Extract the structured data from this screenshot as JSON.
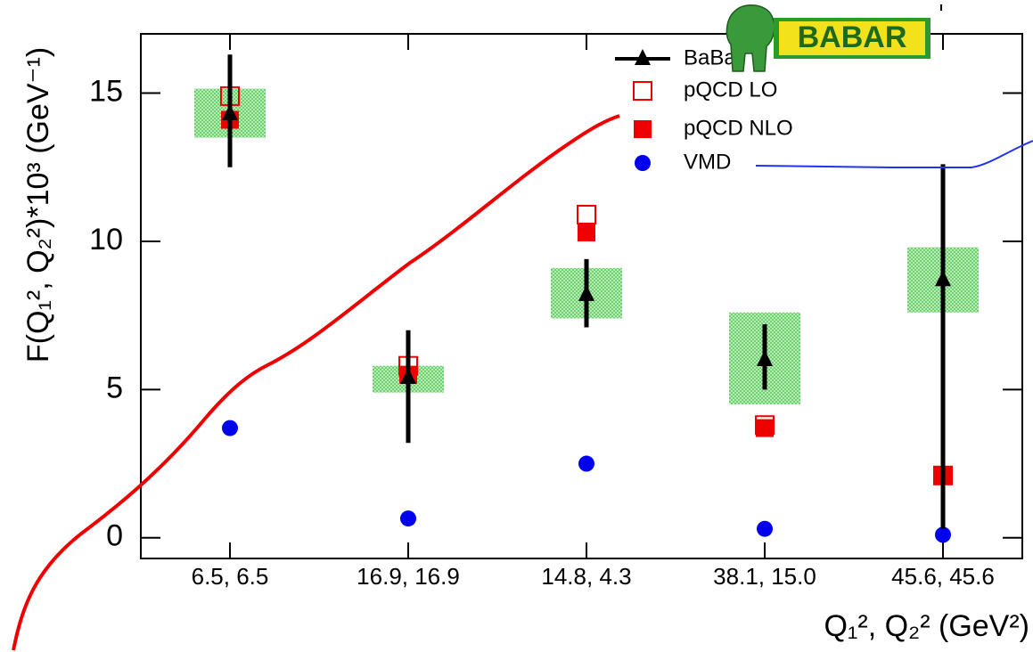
{
  "chart_data": {
    "type": "errorbar",
    "y_label": "F(Q₁², Q₂²)*10³ (GeV⁻¹)",
    "x_label": "Q₁², Q₂² (GeV²)",
    "logo": "BABAR",
    "categories": [
      "6.5, 6.5",
      "16.9, 16.9",
      "14.8, 4.3",
      "38.1, 15.0",
      "45.6, 45.6"
    ],
    "ylim": [
      -0.7,
      17
    ],
    "yticks": [
      0,
      5,
      10,
      15
    ],
    "series": [
      {
        "name": "BaBar",
        "marker": "triangle",
        "color": "#000000",
        "values": [
          14.3,
          5.4,
          8.2,
          6.0,
          8.7
        ],
        "err_minus": [
          1.8,
          2.2,
          1.1,
          1.0,
          8.4
        ],
        "err_plus": [
          2.0,
          1.6,
          1.2,
          1.2,
          3.9
        ],
        "syst_minus": [
          0.8,
          0.5,
          0.8,
          1.5,
          1.1
        ],
        "syst_plus": [
          0.85,
          0.4,
          0.9,
          1.6,
          1.1
        ],
        "syst_color": "#7fd67f"
      },
      {
        "name": "pQCD LO",
        "marker": "open-square",
        "color": "#ee0000",
        "values": [
          14.9,
          5.8,
          10.9,
          3.8,
          2.1
        ]
      },
      {
        "name": "pQCD NLO",
        "marker": "square",
        "color": "#ee0000",
        "values": [
          14.1,
          5.5,
          10.3,
          3.7,
          2.1
        ]
      },
      {
        "name": "VMD",
        "marker": "circle",
        "color": "#0000ee",
        "values": [
          3.7,
          0.65,
          2.5,
          0.3,
          0.1
        ]
      }
    ]
  }
}
